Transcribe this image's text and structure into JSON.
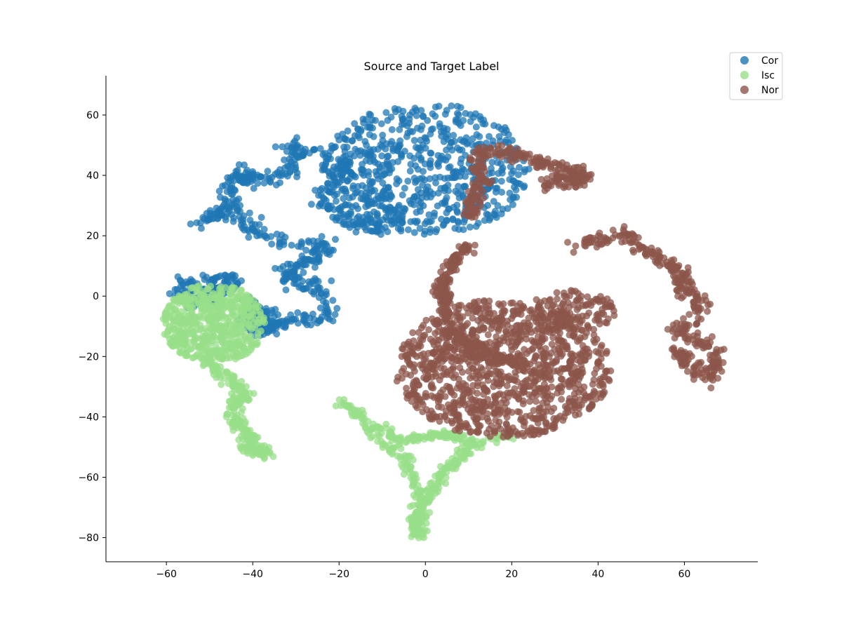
{
  "chart_data": {
    "type": "scatter",
    "title": "Source and Target Label",
    "xlabel": "",
    "ylabel": "",
    "xlim": [
      -74,
      77
    ],
    "ylim": [
      -88,
      73
    ],
    "xticks": [
      -60,
      -40,
      -20,
      0,
      20,
      40,
      60
    ],
    "yticks": [
      -80,
      -60,
      -40,
      -20,
      0,
      20,
      40,
      60
    ],
    "xtick_labels": [
      "−60",
      "−40",
      "−20",
      "0",
      "20",
      "40",
      "60"
    ],
    "ytick_labels": [
      "−80",
      "−60",
      "−40",
      "−20",
      "0",
      "20",
      "40",
      "60"
    ],
    "grid": false,
    "legend_position": "top-right",
    "series": [
      {
        "name": "Cor",
        "color": "#1f77b4",
        "clusters": [
          {
            "shape": "blob",
            "cx": 0,
            "cy": 42,
            "rx": 24,
            "ry": 22,
            "n": 650
          },
          {
            "shape": "path",
            "width": 2.2,
            "n": 560,
            "points": [
              [
                -36,
                -6
              ],
              [
                -30,
                -8
              ],
              [
                -24,
                -8
              ],
              [
                -22,
                -2
              ],
              [
                -25,
                3
              ],
              [
                -30,
                4
              ],
              [
                -33,
                9
              ],
              [
                -26,
                12
              ],
              [
                -22,
                16
              ],
              [
                -28,
                17
              ],
              [
                -34,
                18
              ],
              [
                -39,
                20
              ],
              [
                -42,
                25
              ],
              [
                -48,
                28
              ],
              [
                -51,
                25
              ],
              [
                -44,
                30
              ],
              [
                -46,
                36
              ],
              [
                -40,
                41
              ],
              [
                -44,
                40
              ],
              [
                -37,
                38
              ],
              [
                -32,
                40
              ],
              [
                -29,
                46
              ],
              [
                -32,
                50
              ],
              [
                -26,
                48
              ],
              [
                -22,
                45
              ],
              [
                -18,
                44
              ],
              [
                -21,
                38
              ],
              [
                -24,
                32
              ],
              [
                -20,
                25
              ],
              [
                -12,
                22
              ],
              [
                -6,
                24
              ],
              [
                -10,
                30
              ],
              [
                -14,
                33
              ]
            ]
          },
          {
            "shape": "path",
            "width": 1.8,
            "n": 130,
            "points": [
              [
                -57,
                4
              ],
              [
                -54,
                6
              ],
              [
                -50,
                5
              ],
              [
                -46,
                7
              ],
              [
                -44,
                4
              ],
              [
                -49,
                1
              ],
              [
                -55,
                2
              ],
              [
                -57,
                0
              ],
              [
                -53,
                -2
              ],
              [
                -48,
                -1
              ]
            ]
          },
          {
            "shape": "path",
            "width": 1.5,
            "n": 140,
            "points": [
              [
                -42,
                -1
              ],
              [
                -39,
                -4
              ],
              [
                -37,
                -8
              ],
              [
                -34,
                -10
              ],
              [
                -37,
                -12
              ],
              [
                -40,
                -10
              ],
              [
                -42,
                -7
              ]
            ]
          }
        ]
      },
      {
        "name": "Isc",
        "color": "#98df8a",
        "clusters": [
          {
            "shape": "blob",
            "cx": -49,
            "cy": -9,
            "rx": 12,
            "ry": 13,
            "n": 560
          },
          {
            "shape": "path",
            "width": 1.6,
            "n": 230,
            "points": [
              [
                -50,
                -22
              ],
              [
                -47,
                -26
              ],
              [
                -44,
                -29
              ],
              [
                -42,
                -33
              ],
              [
                -45,
                -38
              ],
              [
                -43,
                -43
              ],
              [
                -40,
                -47
              ],
              [
                -42,
                -50
              ],
              [
                -37,
                -52
              ],
              [
                -40,
                -49
              ]
            ]
          },
          {
            "shape": "path",
            "width": 1.4,
            "n": 330,
            "points": [
              [
                -20,
                -35
              ],
              [
                -16,
                -38
              ],
              [
                -13,
                -44
              ],
              [
                -10,
                -48
              ],
              [
                -6,
                -53
              ],
              [
                -3,
                -57
              ],
              [
                -2,
                -63
              ],
              [
                -1,
                -68
              ],
              [
                -2,
                -73
              ],
              [
                -1,
                -79
              ],
              [
                -3,
                -78
              ],
              [
                -1,
                -72
              ],
              [
                1,
                -66
              ],
              [
                3,
                -60
              ],
              [
                6,
                -56
              ],
              [
                9,
                -51
              ],
              [
                13,
                -48
              ],
              [
                17,
                -47
              ],
              [
                20,
                -46
              ]
            ]
          },
          {
            "shape": "path",
            "width": 1.2,
            "n": 110,
            "points": [
              [
                -10,
                -44
              ],
              [
                -6,
                -48
              ],
              [
                -2,
                -47
              ],
              [
                2,
                -46
              ],
              [
                6,
                -46
              ],
              [
                10,
                -48
              ]
            ]
          }
        ]
      },
      {
        "name": "Nor",
        "color": "#8c564b",
        "clusters": [
          {
            "shape": "blob",
            "cx": 18,
            "cy": -24,
            "rx": 25,
            "ry": 23,
            "n": 1150
          },
          {
            "shape": "blob",
            "cx": 34,
            "cy": -5,
            "rx": 10,
            "ry": 7,
            "n": 120
          },
          {
            "shape": "path",
            "width": 1.6,
            "n": 280,
            "points": [
              [
                10,
                17
              ],
              [
                7,
                12
              ],
              [
                4,
                6
              ],
              [
                4,
                -1
              ],
              [
                5,
                -8
              ],
              [
                8,
                -15
              ],
              [
                13,
                -19
              ],
              [
                18,
                -21
              ],
              [
                22,
                -24
              ]
            ]
          },
          {
            "shape": "path",
            "width": 1.8,
            "n": 340,
            "points": [
              [
                35,
                17
              ],
              [
                41,
                19
              ],
              [
                45,
                21
              ],
              [
                49,
                17
              ],
              [
                55,
                12
              ],
              [
                59,
                8
              ],
              [
                60,
                2
              ],
              [
                64,
                -2
              ],
              [
                62,
                -8
              ],
              [
                58,
                -12
              ],
              [
                64,
                -15
              ],
              [
                68,
                -20
              ],
              [
                66,
                -27
              ],
              [
                62,
                -24
              ],
              [
                58,
                -18
              ]
            ]
          },
          {
            "shape": "path",
            "width": 1.6,
            "n": 290,
            "points": [
              [
                11,
                26
              ],
              [
                11,
                32
              ],
              [
                13,
                38
              ],
              [
                12,
                44
              ],
              [
                14,
                49
              ],
              [
                19,
                48
              ],
              [
                23,
                46
              ],
              [
                27,
                44
              ],
              [
                32,
                42
              ],
              [
                37,
                41
              ],
              [
                35,
                37
              ],
              [
                31,
                40
              ],
              [
                28,
                36
              ]
            ]
          }
        ]
      }
    ]
  }
}
